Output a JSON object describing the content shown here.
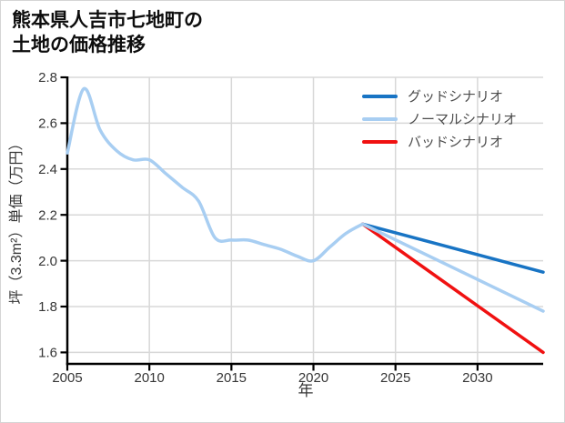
{
  "title": {
    "line1": "熊本県人吉市七地町の",
    "line2": "土地の価格推移"
  },
  "chart_data": {
    "type": "line",
    "title": "熊本県人吉市七地町の土地の価格推移",
    "xlabel": "年",
    "ylabel": "坪（3.3m²）単価（万円）",
    "x_range": [
      2005,
      2034
    ],
    "y_range": [
      1.55,
      2.8
    ],
    "xticks": [
      2005,
      2010,
      2015,
      2020,
      2025,
      2030
    ],
    "yticks": [
      1.6,
      1.8,
      2.0,
      2.2,
      2.4,
      2.6,
      2.8
    ],
    "grid": true,
    "legend_position": "top-right-inside",
    "series": [
      {
        "name": "グッドシナリオ",
        "role": "good",
        "color": "#1874c4",
        "x": [
          2023,
          2034
        ],
        "values": [
          2.16,
          1.95
        ]
      },
      {
        "name": "ノーマルシナリオ",
        "role": "normal",
        "color": "#a8cef2",
        "x": [
          2005,
          2006,
          2007,
          2008,
          2009,
          2010,
          2011,
          2012,
          2013,
          2014,
          2015,
          2016,
          2017,
          2018,
          2019,
          2020,
          2021,
          2022,
          2023,
          2034
        ],
        "values": [
          2.47,
          2.75,
          2.57,
          2.48,
          2.44,
          2.44,
          2.38,
          2.32,
          2.26,
          2.1,
          2.09,
          2.09,
          2.07,
          2.05,
          2.02,
          2.0,
          2.06,
          2.12,
          2.16,
          1.78
        ]
      },
      {
        "name": "バッドシナリオ",
        "role": "bad",
        "color": "#f01111",
        "x": [
          2023,
          2034
        ],
        "values": [
          2.16,
          1.6
        ]
      }
    ],
    "colors": {
      "grid": "#d8d8d8",
      "axis": "#000000",
      "tick_label": "#363636",
      "axis_title": "#363636",
      "legend_text": "#4c4c4c"
    }
  }
}
